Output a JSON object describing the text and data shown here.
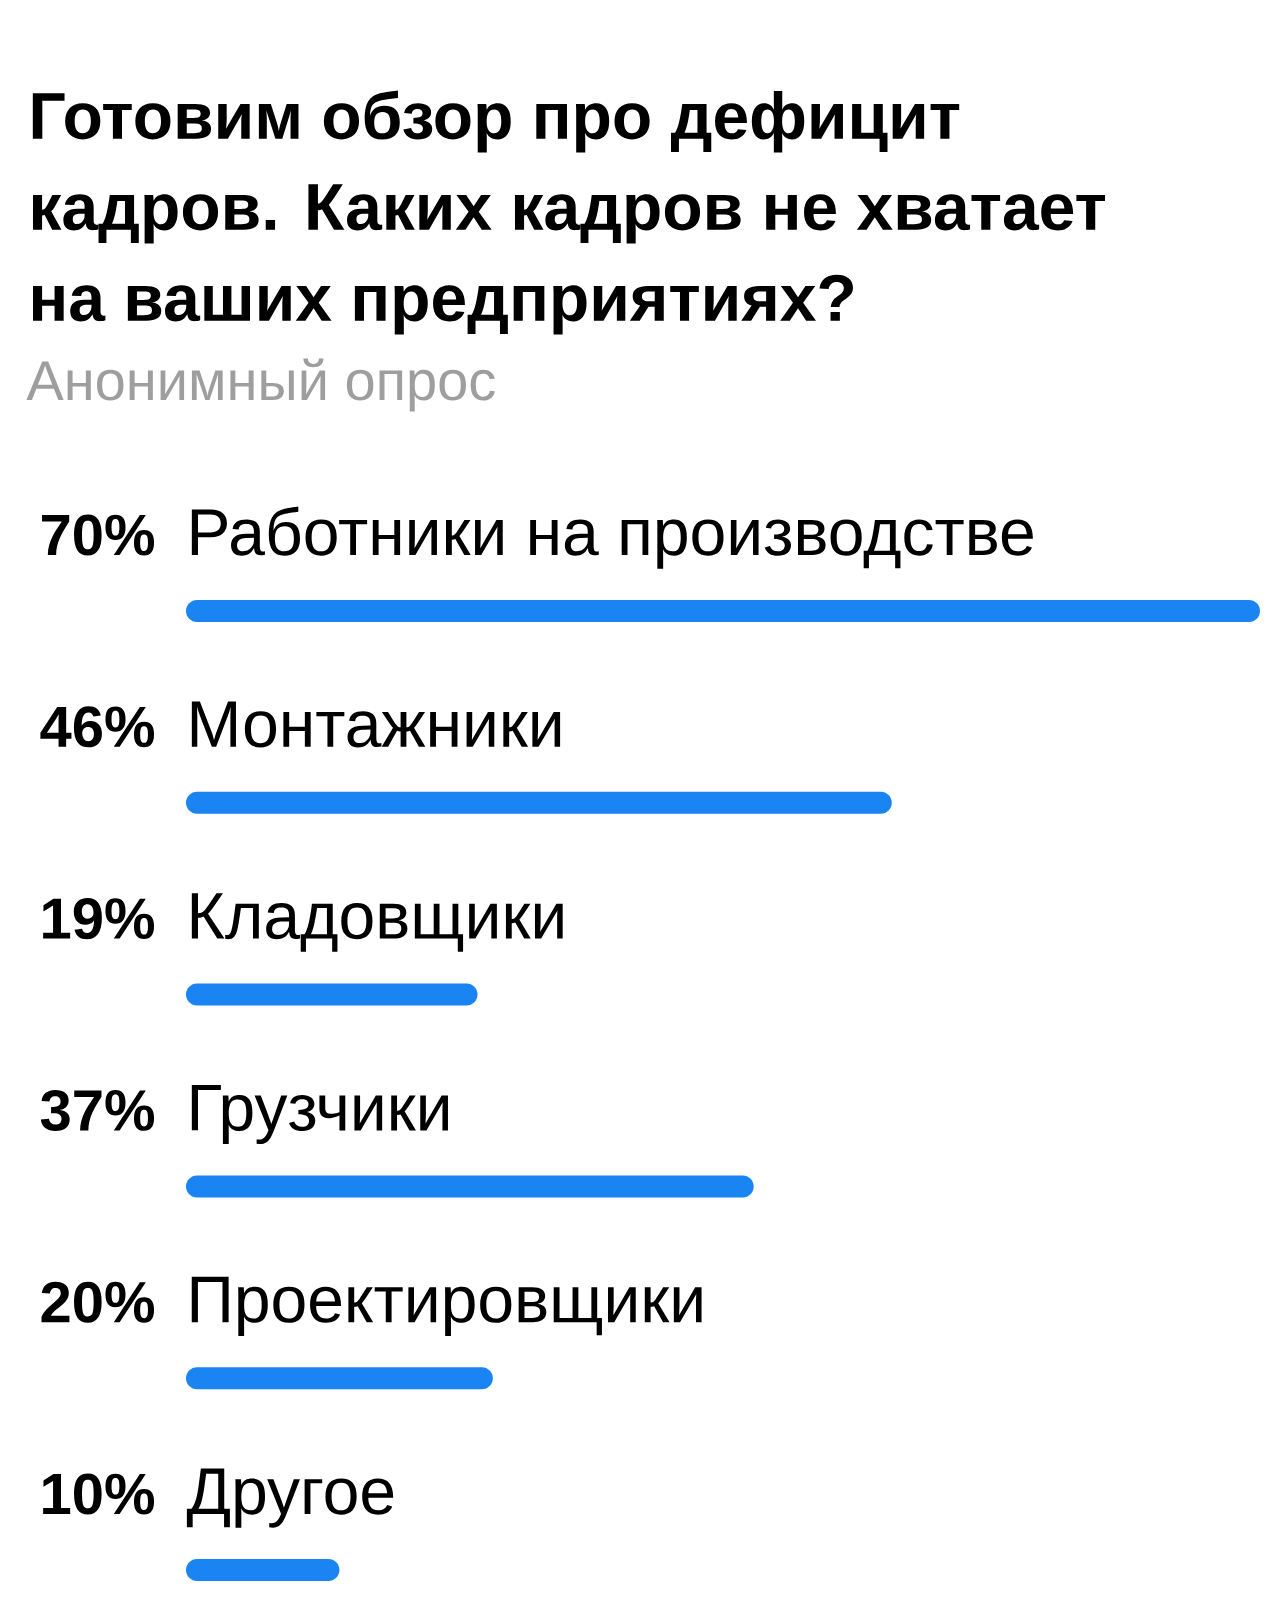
{
  "chart_data": {
    "type": "bar",
    "orientation": "horizontal",
    "title": "Готовим обзор про дефицит кадров. Каких кадров не хватает на ваших предприятиях?",
    "subtitle": "Анонимный опрос",
    "categories": [
      "Работники на производстве",
      "Монтажники",
      "Кладовщики",
      "Грузчики",
      "Проектировщики",
      "Другое"
    ],
    "values": [
      70,
      46,
      19,
      37,
      20,
      10
    ],
    "value_labels": [
      "70%",
      "46%",
      "19%",
      "37%",
      "20%",
      "10%"
    ],
    "color": "#1a84f2",
    "tick_labels": "y"
  }
}
